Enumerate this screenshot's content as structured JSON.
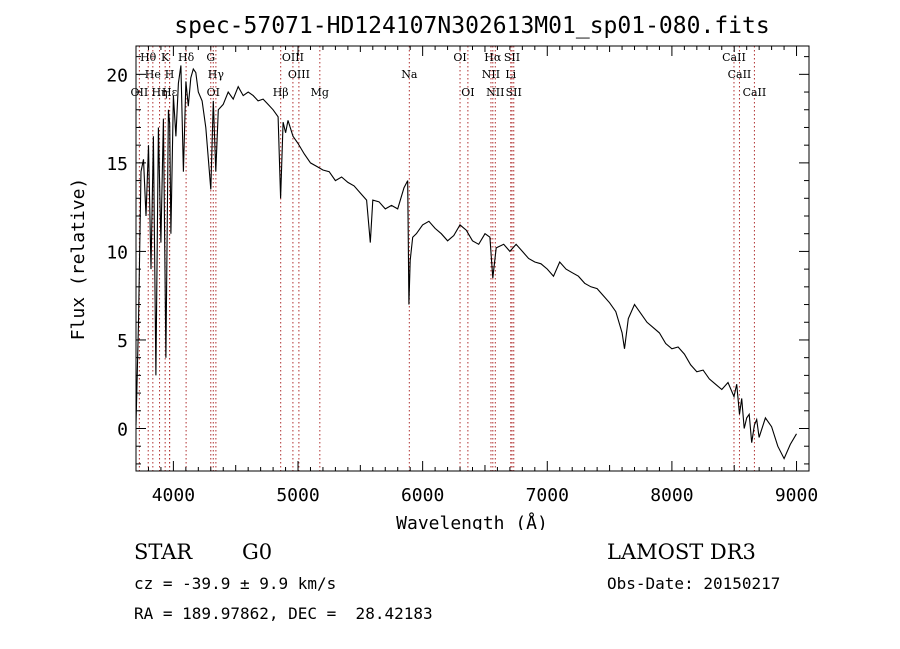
{
  "chart_data": {
    "type": "line",
    "title": "spec-57071-HD124107N302613M01_sp01-080.fits",
    "xlabel": "Wavelength (Å)",
    "ylabel": "Flux (relative)",
    "xlim": [
      3700,
      9100
    ],
    "ylim": [
      -2.4,
      21.6
    ],
    "x_ticks": [
      4000,
      5000,
      6000,
      7000,
      8000,
      9000
    ],
    "y_ticks": [
      0,
      5,
      10,
      15,
      20
    ],
    "grid": false,
    "series": [
      {
        "name": "flux",
        "x": [
          3700,
          3720,
          3740,
          3760,
          3780,
          3800,
          3820,
          3840,
          3860,
          3880,
          3900,
          3920,
          3940,
          3960,
          3970,
          3980,
          4000,
          4020,
          4040,
          4060,
          4080,
          4100,
          4120,
          4140,
          4160,
          4180,
          4200,
          4230,
          4260,
          4300,
          4320,
          4340,
          4360,
          4400,
          4440,
          4480,
          4520,
          4560,
          4600,
          4640,
          4680,
          4720,
          4760,
          4800,
          4840,
          4860,
          4880,
          4900,
          4920,
          4960,
          5000,
          5050,
          5100,
          5150,
          5200,
          5250,
          5300,
          5350,
          5400,
          5450,
          5500,
          5550,
          5580,
          5600,
          5650,
          5700,
          5750,
          5800,
          5850,
          5880,
          5890,
          5900,
          5920,
          5950,
          6000,
          6050,
          6100,
          6150,
          6200,
          6250,
          6300,
          6350,
          6400,
          6450,
          6500,
          6540,
          6563,
          6590,
          6650,
          6700,
          6750,
          6800,
          6850,
          6900,
          6950,
          7000,
          7050,
          7100,
          7150,
          7200,
          7250,
          7300,
          7350,
          7400,
          7450,
          7500,
          7550,
          7600,
          7620,
          7650,
          7700,
          7750,
          7800,
          7850,
          7900,
          7950,
          8000,
          8050,
          8100,
          8150,
          8200,
          8250,
          8300,
          8350,
          8400,
          8450,
          8498,
          8520,
          8542,
          8560,
          8580,
          8600,
          8620,
          8640,
          8662,
          8680,
          8700,
          8750,
          8800,
          8850,
          8900,
          8950,
          9000
        ],
        "y": [
          0.2,
          6.0,
          14.5,
          15.2,
          12.0,
          16.0,
          9.0,
          16.5,
          3.0,
          17.0,
          10.5,
          17.5,
          4.0,
          18.0,
          17.2,
          11.0,
          18.8,
          16.5,
          19.5,
          20.5,
          14.5,
          19.6,
          18.2,
          19.8,
          20.3,
          20.1,
          19.0,
          18.5,
          17.0,
          13.5,
          18.5,
          14.5,
          18.0,
          18.3,
          19.0,
          18.6,
          19.3,
          18.8,
          19.0,
          18.8,
          18.5,
          18.6,
          18.3,
          18.0,
          17.6,
          13.0,
          17.3,
          16.7,
          17.4,
          16.5,
          16.1,
          15.5,
          15.0,
          14.8,
          14.6,
          14.5,
          14.0,
          14.2,
          13.9,
          13.7,
          13.3,
          12.9,
          10.5,
          12.9,
          12.8,
          12.4,
          12.6,
          12.4,
          13.6,
          14.0,
          7.0,
          9.5,
          10.8,
          11.0,
          11.5,
          11.7,
          11.3,
          11.0,
          10.6,
          10.9,
          11.5,
          11.2,
          10.6,
          10.4,
          11.0,
          10.8,
          8.5,
          10.2,
          10.4,
          10.0,
          10.4,
          10.0,
          9.6,
          9.4,
          9.3,
          9.0,
          8.6,
          9.4,
          9.0,
          8.8,
          8.6,
          8.2,
          8.0,
          7.9,
          7.5,
          7.1,
          6.6,
          5.4,
          4.5,
          6.2,
          7.0,
          6.5,
          6.0,
          5.7,
          5.4,
          4.8,
          4.5,
          4.6,
          4.2,
          3.6,
          3.2,
          3.3,
          2.8,
          2.5,
          2.2,
          2.6,
          1.8,
          2.5,
          0.8,
          1.7,
          0.0,
          0.6,
          0.8,
          -0.8,
          0.2,
          0.5,
          -0.5,
          0.6,
          0.1,
          -1.0,
          -1.7,
          -0.9,
          -0.3
        ]
      }
    ],
    "lines": [
      {
        "label": "Hθ",
        "x": 3798,
        "row": 1
      },
      {
        "label": "He",
        "x": 3835,
        "row": 2
      },
      {
        "label": "OII",
        "x": 3727,
        "row": 3
      },
      {
        "label": "Hη",
        "x": 3889,
        "row": 3
      },
      {
        "label": "K",
        "x": 3934,
        "row": 1
      },
      {
        "label": "H",
        "x": 3969,
        "row": 2
      },
      {
        "label": "Hδ",
        "x": 4102,
        "row": 1
      },
      {
        "label": "Hε",
        "x": 3970,
        "row": 3
      },
      {
        "label": "G",
        "x": 4300,
        "row": 1
      },
      {
        "label": "Hγ",
        "x": 4341,
        "row": 2
      },
      {
        "label": "OI",
        "x": 4320,
        "row": 3
      },
      {
        "label": "Hβ",
        "x": 4861,
        "row": 3
      },
      {
        "label": "OIII",
        "x": 4959,
        "row": 1
      },
      {
        "label": "OIII",
        "x": 5007,
        "row": 2
      },
      {
        "label": "Mg",
        "x": 5175,
        "row": 3
      },
      {
        "label": "Na",
        "x": 5893,
        "row": 2
      },
      {
        "label": "OI",
        "x": 6300,
        "row": 1
      },
      {
        "label": "OI",
        "x": 6363,
        "row": 3
      },
      {
        "label": "Hα",
        "x": 6563,
        "row": 1
      },
      {
        "label": "NII",
        "x": 6548,
        "row": 2
      },
      {
        "label": "NII",
        "x": 6583,
        "row": 3
      },
      {
        "label": "SII",
        "x": 6717,
        "row": 1
      },
      {
        "label": "Li",
        "x": 6707,
        "row": 2
      },
      {
        "label": "SII",
        "x": 6731,
        "row": 3
      },
      {
        "label": "CaII",
        "x": 8498,
        "row": 1
      },
      {
        "label": "CaII",
        "x": 8542,
        "row": 2
      },
      {
        "label": "CaII",
        "x": 8662,
        "row": 3
      }
    ]
  },
  "info": {
    "object_class": "STAR",
    "subclass": "G0",
    "survey": "LAMOST DR3",
    "velocity": "cz = -39.9 ± 9.9 km/s",
    "obs_date": "Obs-Date: 20150217",
    "coords": "RA = 189.97862, DEC =  28.42183"
  }
}
